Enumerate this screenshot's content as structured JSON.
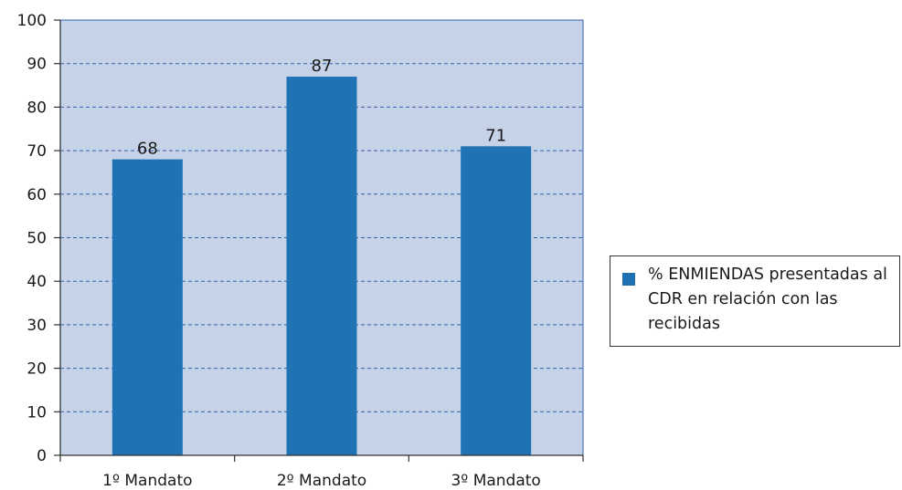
{
  "chart_data": {
    "type": "bar",
    "categories": [
      "1º Mandato",
      "2º Mandato",
      "3º Mandato"
    ],
    "series": [
      {
        "name": "% ENMIENDAS presentadas al CDR en relación con las recibidas",
        "values": [
          68,
          87,
          71
        ]
      }
    ],
    "data_labels": [
      "68",
      "87",
      "71"
    ],
    "ylim": [
      0,
      100
    ],
    "yticks": [
      0,
      10,
      20,
      30,
      40,
      50,
      60,
      70,
      80,
      90,
      100
    ],
    "grid": true,
    "legend_position": "right",
    "colors": {
      "bar": "#1f72b4",
      "plot_background": "#c5d2e8",
      "grid": "#2f62a8",
      "axis": "#333333"
    }
  },
  "legend": {
    "label": "% ENMIENDAS presentadas al CDR en relación con las recibidas"
  }
}
